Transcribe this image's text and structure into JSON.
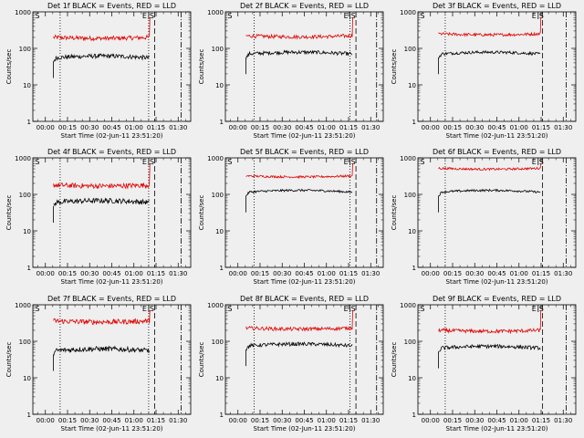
{
  "chart_data": {
    "type": "line",
    "panel_titles": [
      "Det 1f BLACK = Events, RED = LLD",
      "Det 2f BLACK = Events, RED = LLD",
      "Det 3f BLACK = Events, RED = LLD",
      "Det 4f BLACK = Events, RED = LLD",
      "Det 5f BLACK = Events, RED = LLD",
      "Det 6f BLACK = Events, RED = LLD",
      "Det 7f BLACK = Events, RED = LLD",
      "Det 8f BLACK = Events, RED = LLD",
      "Det 9f BLACK = Events, RED = LLD"
    ],
    "xlabel": "Start Time (02-Jun-11 23:51:20)",
    "ylabel": "Counts/sec",
    "x_ticks": [
      "00:00",
      "00:15",
      "00:30",
      "00:45",
      "01:00",
      "01:15",
      "01:30"
    ],
    "y_ticks": [
      "1",
      "10",
      "100",
      "1000"
    ],
    "y_scale": "log",
    "ylim": [
      1,
      1000
    ],
    "xlim_minutes": [
      -8.5,
      98.5
    ],
    "markers": {
      "S_label": "S",
      "E_label": "E"
    },
    "panels": [
      {
        "lld_level": 200,
        "event_level": 55,
        "noise": 0.06,
        "start": 5.5,
        "stop": 70.5,
        "dotted": [
          10,
          70
        ],
        "dashed": 74,
        "dashdot": 92,
        "s_x": -7,
        "es_x": 70
      },
      {
        "lld_level": 220,
        "event_level": 70,
        "noise": 0.05,
        "start": 5.5,
        "stop": 77.5,
        "dotted": [
          11,
          76
        ],
        "dashed": 80,
        "dashdot": 94,
        "s_x": -7,
        "es_x": 76
      },
      {
        "lld_level": 250,
        "event_level": 70,
        "noise": 0.04,
        "start": 5.5,
        "stop": 74.5,
        "dotted": [
          10,
          null
        ],
        "dashed": 76,
        "dashdot": 92,
        "s_x": -7,
        "es_x": 73
      },
      {
        "lld_level": 180,
        "event_level": 60,
        "noise": 0.07,
        "start": 5.5,
        "stop": 70.5,
        "dotted": [
          10,
          70
        ],
        "dashed": 74,
        "dashdot": 92,
        "s_x": -7,
        "es_x": 70
      },
      {
        "lld_level": 320,
        "event_level": 115,
        "noise": 0.03,
        "start": 5.5,
        "stop": 77.5,
        "dotted": [
          11,
          76
        ],
        "dashed": 80,
        "dashdot": 94,
        "s_x": -7,
        "es_x": 76
      },
      {
        "lld_level": 520,
        "event_level": 115,
        "noise": 0.03,
        "start": 5.5,
        "stop": 74.5,
        "dotted": [
          10,
          null
        ],
        "dashed": 76,
        "dashdot": 92,
        "s_x": -7,
        "es_x": 73
      },
      {
        "lld_level": 360,
        "event_level": 55,
        "noise": 0.07,
        "start": 5.5,
        "stop": 70.5,
        "dotted": [
          10,
          70
        ],
        "dashed": 74,
        "dashdot": 92,
        "s_x": -7,
        "es_x": 70
      },
      {
        "lld_level": 230,
        "event_level": 75,
        "noise": 0.05,
        "start": 5.5,
        "stop": 77.5,
        "dotted": [
          11,
          76
        ],
        "dashed": 80,
        "dashdot": 94,
        "s_x": -7,
        "es_x": 76
      },
      {
        "lld_level": 200,
        "event_level": 65,
        "noise": 0.05,
        "start": 5.5,
        "stop": 74.5,
        "dotted": [
          10,
          null
        ],
        "dashed": 76,
        "dashdot": 92,
        "s_x": -7,
        "es_x": 73
      }
    ],
    "colors": {
      "events": "#000000",
      "lld": "#e00000",
      "background": "#efefef"
    }
  }
}
